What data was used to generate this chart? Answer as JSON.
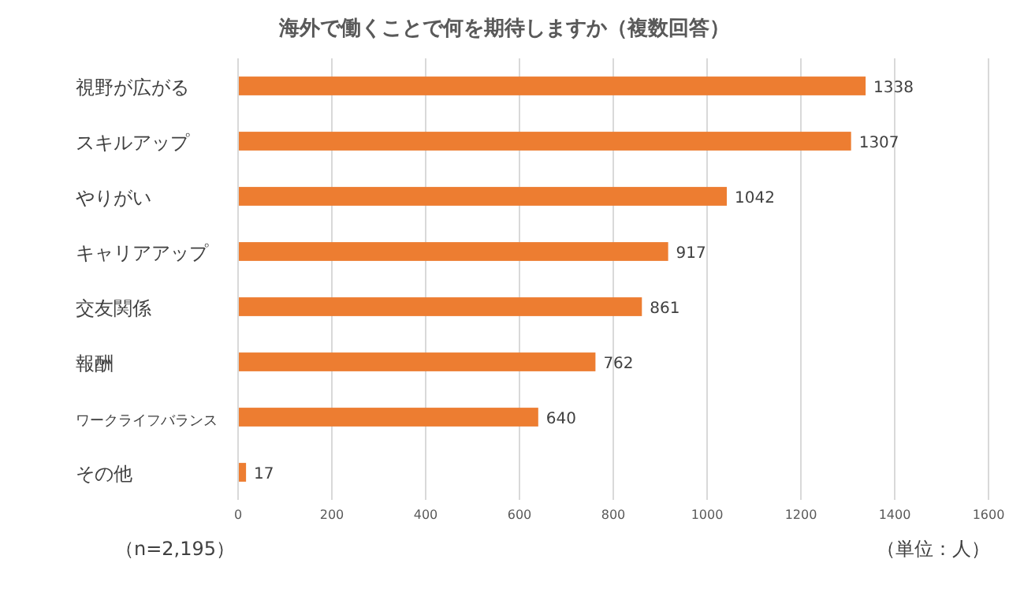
{
  "chart_data": {
    "type": "bar",
    "orientation": "horizontal",
    "title": "海外で働くことで何を期待しますか（複数回答）",
    "categories": [
      "視野が広がる",
      "スキルアップ",
      "やりがい",
      "キャリアアップ",
      "交友関係",
      "報酬",
      "ワークライフバランス",
      "その他"
    ],
    "values": [
      1338,
      1307,
      1042,
      917,
      861,
      762,
      640,
      17
    ],
    "color": "#ed7d31",
    "xlim": [
      0,
      1600
    ],
    "xticks": [
      0,
      200,
      400,
      600,
      800,
      1000,
      1200,
      1400,
      1600
    ],
    "grid": "x",
    "data_labels": true,
    "annotations": [
      "（n=2,195）",
      "（単位：人）"
    ]
  }
}
